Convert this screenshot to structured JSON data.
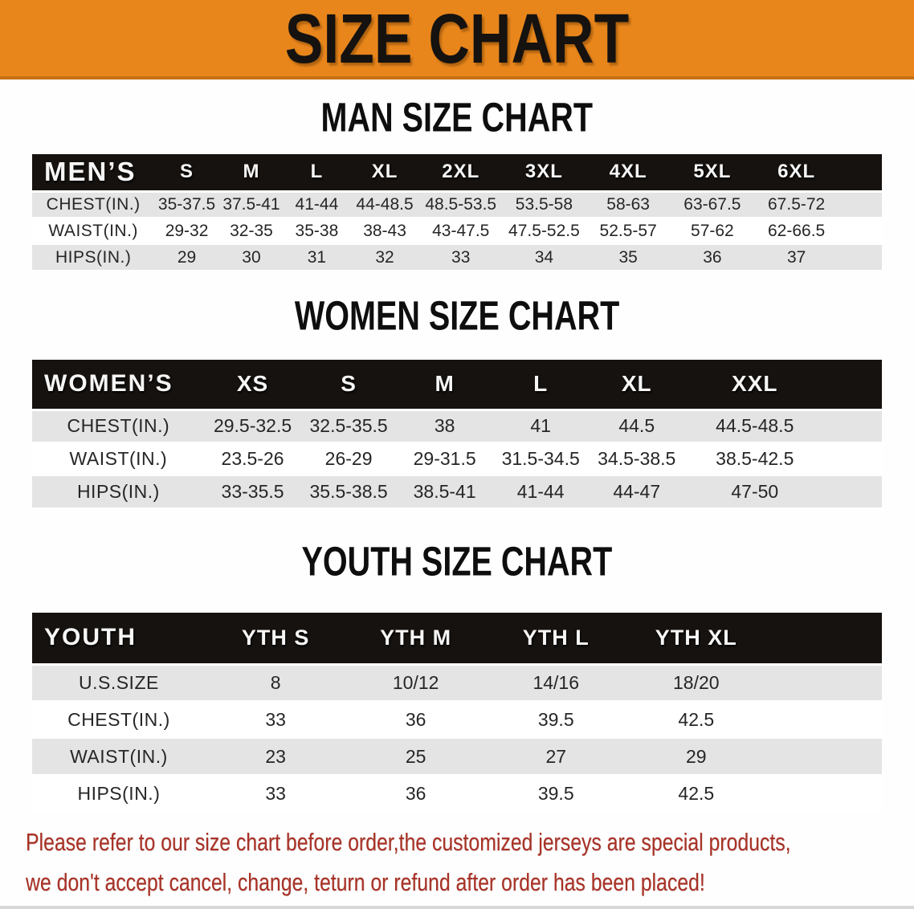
{
  "banner": {
    "title": "SIZE CHART"
  },
  "sections": {
    "men": {
      "heading": "MAN SIZE CHART",
      "table": {
        "header": [
          "MEN’S",
          "S",
          "M",
          "L",
          "XL",
          "2XL",
          "3XL",
          "4XL",
          "5XL",
          "6XL"
        ],
        "rows": [
          [
            "CHEST(IN.)",
            "35-37.5",
            "37.5-41",
            "41-44",
            "44-48.5",
            "48.5-53.5",
            "53.5-58",
            "58-63",
            "63-67.5",
            "67.5-72"
          ],
          [
            "WAIST(IN.)",
            "29-32",
            "32-35",
            "35-38",
            "38-43",
            "43-47.5",
            "47.5-52.5",
            "52.5-57",
            "57-62",
            "62-66.5"
          ],
          [
            "HIPS(IN.)",
            "29",
            "30",
            "31",
            "32",
            "33",
            "34",
            "35",
            "36",
            "37"
          ]
        ]
      }
    },
    "women": {
      "heading": "WOMEN SIZE CHART",
      "table": {
        "header": [
          "WOMEN’S",
          "XS",
          "S",
          "M",
          "L",
          "XL",
          "XXL"
        ],
        "rows": [
          [
            "CHEST(IN.)",
            "29.5-32.5",
            "32.5-35.5",
            "38",
            "41",
            "44.5",
            "44.5-48.5"
          ],
          [
            "WAIST(IN.)",
            "23.5-26",
            "26-29",
            "29-31.5",
            "31.5-34.5",
            "34.5-38.5",
            "38.5-42.5"
          ],
          [
            "HIPS(IN.)",
            "33-35.5",
            "35.5-38.5",
            "38.5-41",
            "41-44",
            "44-47",
            "47-50"
          ]
        ]
      }
    },
    "youth": {
      "heading": "YOUTH SIZE CHART",
      "table": {
        "header": [
          "YOUTH",
          "YTH S",
          "YTH M",
          "YTH L",
          "YTH XL"
        ],
        "rows": [
          [
            "U.S.SIZE",
            "8",
            "10/12",
            "14/16",
            "18/20"
          ],
          [
            "CHEST(IN.)",
            "33",
            "36",
            "39.5",
            "42.5"
          ],
          [
            "WAIST(IN.)",
            "23",
            "25",
            "27",
            "29"
          ],
          [
            "HIPS(IN.)",
            "33",
            "36",
            "39.5",
            "42.5"
          ]
        ]
      }
    }
  },
  "disclaimer": {
    "lines": [
      "Please refer to our size chart before order,the customized jerseys are special products,",
      "we don't accept cancel, change, teturn or refund after order has been placed!"
    ]
  },
  "colors": {
    "banner_orange": "#E8861C",
    "banner_edge": "#C8700F",
    "table_header_black": "#16120F",
    "stripe_gray": "#E4E4E5",
    "disclaimer_red": "#A93226"
  }
}
